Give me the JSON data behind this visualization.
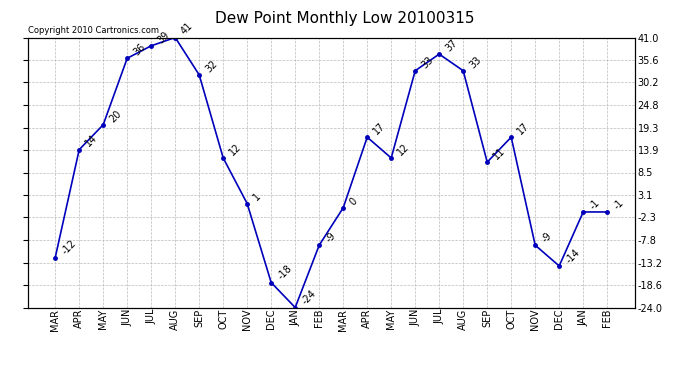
{
  "title": "Dew Point Monthly Low 20100315",
  "copyright": "Copyright 2010 Cartronics.com",
  "months": [
    "MAR",
    "APR",
    "MAY",
    "JUN",
    "JUL",
    "AUG",
    "SEP",
    "OCT",
    "NOV",
    "DEC",
    "JAN",
    "FEB",
    "MAR",
    "APR",
    "MAY",
    "JUN",
    "JUL",
    "AUG",
    "SEP",
    "OCT",
    "NOV",
    "DEC",
    "JAN",
    "FEB"
  ],
  "values": [
    -12,
    14,
    20,
    36,
    39,
    41,
    32,
    12,
    1,
    -18,
    -24,
    -9,
    0,
    17,
    12,
    33,
    37,
    33,
    11,
    17,
    -9,
    -14,
    -1,
    -1
  ],
  "ylim_min": -24,
  "ylim_max": 41,
  "yticks": [
    -24.0,
    -18.6,
    -13.2,
    -7.8,
    -2.3,
    3.1,
    8.5,
    13.9,
    19.3,
    24.8,
    30.2,
    35.6,
    41.0
  ],
  "line_color": "#0000bb",
  "marker_color": "#0000bb",
  "bg_color": "#ffffff",
  "grid_color": "#bbbbbb",
  "title_fontsize": 11,
  "tick_fontsize": 7,
  "annotation_fontsize": 7,
  "copyright_fontsize": 6
}
